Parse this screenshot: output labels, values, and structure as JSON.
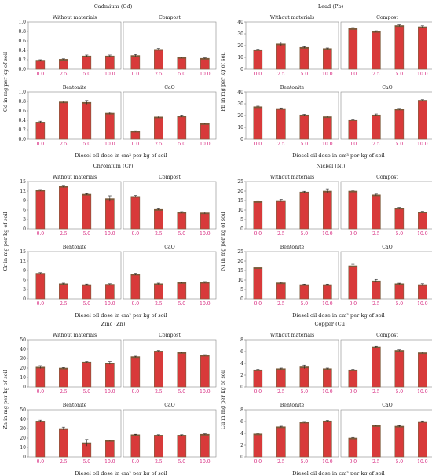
{
  "x_axis_label": "Diesel oil dose in cm³ per kg of soil",
  "doses": [
    "0.0",
    "2.5",
    "5.0",
    "10.0"
  ],
  "colors": {
    "bar": "#d83a3a",
    "bar_edge": "#7a5a3a",
    "xtick": "#d6207b"
  },
  "chart_data": [
    {
      "type": "bar",
      "title": "Cadmium (Cd)",
      "ylabel": "Cd in mg per kg of soil",
      "ylim": [
        0,
        1.0
      ],
      "yticks": [
        "0.0",
        "0.2",
        "0.4",
        "0.6",
        "0.8",
        "1.0"
      ],
      "categories": [
        "0.0",
        "2.5",
        "5.0",
        "10.0"
      ],
      "panels": [
        {
          "name": "Without materials",
          "values": [
            0.19,
            0.21,
            0.28,
            0.28
          ],
          "errors": [
            0.01,
            0.01,
            0.02,
            0.02
          ]
        },
        {
          "name": "Compost",
          "values": [
            0.29,
            0.42,
            0.25,
            0.23
          ],
          "errors": [
            0.02,
            0.02,
            0.01,
            0.01
          ]
        },
        {
          "name": "Bentonite",
          "values": [
            0.36,
            0.79,
            0.78,
            0.55
          ],
          "errors": [
            0.02,
            0.02,
            0.04,
            0.02
          ]
        },
        {
          "name": "CaO",
          "values": [
            0.17,
            0.47,
            0.49,
            0.33
          ],
          "errors": [
            0.01,
            0.02,
            0.02,
            0.01
          ]
        }
      ]
    },
    {
      "type": "bar",
      "title": "Lead (Pb)",
      "ylabel": "Pb in mg per kg of soil",
      "ylim": [
        0,
        40
      ],
      "yticks": [
        "0",
        "10",
        "20",
        "30",
        "40"
      ],
      "categories": [
        "0.0",
        "2.5",
        "5.0",
        "10.0"
      ],
      "panels": [
        {
          "name": "Without materials",
          "values": [
            16.5,
            21.5,
            18.5,
            17.5
          ],
          "errors": [
            0.5,
            1.5,
            0.6,
            0.5
          ]
        },
        {
          "name": "Compost",
          "values": [
            34.5,
            32.0,
            37.0,
            36.0
          ],
          "errors": [
            0.8,
            0.6,
            0.6,
            0.8
          ]
        },
        {
          "name": "Bentonite",
          "values": [
            27.5,
            26.0,
            20.5,
            19.0
          ],
          "errors": [
            0.5,
            0.5,
            0.5,
            0.5
          ]
        },
        {
          "name": "CaO",
          "values": [
            16.5,
            20.5,
            25.5,
            33.0
          ],
          "errors": [
            0.5,
            0.8,
            0.6,
            0.5
          ]
        }
      ]
    },
    {
      "type": "bar",
      "title": "Chromium (Cr)",
      "ylabel": "Cr in mg per kg of soil",
      "ylim": [
        0,
        15
      ],
      "yticks": [
        "0",
        "3",
        "6",
        "9",
        "12",
        "15"
      ],
      "categories": [
        "0.0",
        "2.5",
        "5.0",
        "10.0"
      ],
      "panels": [
        {
          "name": "Without materials",
          "values": [
            12.3,
            13.5,
            11.0,
            9.6
          ],
          "errors": [
            0.2,
            0.3,
            0.2,
            0.9
          ]
        },
        {
          "name": "Compost",
          "values": [
            10.3,
            6.2,
            5.3,
            5.1
          ],
          "errors": [
            0.3,
            0.2,
            0.2,
            0.3
          ]
        },
        {
          "name": "Bentonite",
          "values": [
            8.1,
            4.8,
            4.5,
            4.6
          ],
          "errors": [
            0.2,
            0.2,
            0.2,
            0.2
          ]
        },
        {
          "name": "CaO",
          "values": [
            7.8,
            4.8,
            5.2,
            5.3
          ],
          "errors": [
            0.3,
            0.2,
            0.2,
            0.2
          ]
        }
      ]
    },
    {
      "type": "bar",
      "title": "Nickel (Ni)",
      "ylabel": "Ni in mg per kg of soil",
      "ylim": [
        0,
        25
      ],
      "yticks": [
        "0",
        "5",
        "10",
        "15",
        "20",
        "25"
      ],
      "categories": [
        "0.0",
        "2.5",
        "5.0",
        "10.0"
      ],
      "panels": [
        {
          "name": "Without materials",
          "values": [
            14.5,
            15.0,
            19.5,
            20.0
          ],
          "errors": [
            0.4,
            0.6,
            0.4,
            1.2
          ]
        },
        {
          "name": "Compost",
          "values": [
            20.0,
            18.0,
            11.0,
            9.0
          ],
          "errors": [
            0.4,
            0.4,
            0.4,
            0.3
          ]
        },
        {
          "name": "Bentonite",
          "values": [
            16.5,
            8.5,
            7.5,
            7.5
          ],
          "errors": [
            0.3,
            0.3,
            0.3,
            0.3
          ]
        },
        {
          "name": "CaO",
          "values": [
            17.5,
            9.5,
            8.0,
            7.5
          ],
          "errors": [
            0.8,
            0.8,
            0.3,
            0.5
          ]
        }
      ]
    },
    {
      "type": "bar",
      "title": "Zinc (Zn)",
      "ylabel": "Zn in mg per kg of soil",
      "ylim": [
        0,
        50
      ],
      "yticks": [
        "0",
        "10",
        "20",
        "30",
        "40",
        "50"
      ],
      "categories": [
        "0.0",
        "2.5",
        "5.0",
        "10.0"
      ],
      "panels": [
        {
          "name": "Without materials",
          "values": [
            21.0,
            20.0,
            26.5,
            25.5
          ],
          "errors": [
            1.5,
            0.5,
            0.5,
            1.5
          ]
        },
        {
          "name": "Compost",
          "values": [
            32.0,
            38.0,
            36.5,
            33.5
          ],
          "errors": [
            0.5,
            0.6,
            0.6,
            0.6
          ]
        },
        {
          "name": "Bentonite",
          "values": [
            38.0,
            30.0,
            15.0,
            17.5
          ],
          "errors": [
            1.0,
            1.5,
            3.5,
            0.5
          ]
        },
        {
          "name": "CaO",
          "values": [
            23.5,
            23.0,
            23.0,
            24.0
          ],
          "errors": [
            0.5,
            0.5,
            0.5,
            0.5
          ]
        }
      ]
    },
    {
      "type": "bar",
      "title": "Copper (Cu)",
      "ylabel": "Cu in mg per kg of soil",
      "ylim": [
        0,
        8
      ],
      "yticks": [
        "0",
        "2",
        "4",
        "6",
        "8"
      ],
      "categories": [
        "0.0",
        "2.5",
        "5.0",
        "10.0"
      ],
      "panels": [
        {
          "name": "Without materials",
          "values": [
            2.9,
            3.1,
            3.4,
            3.1
          ],
          "errors": [
            0.1,
            0.1,
            0.3,
            0.1
          ]
        },
        {
          "name": "Compost",
          "values": [
            2.9,
            6.8,
            6.2,
            5.8
          ],
          "errors": [
            0.1,
            0.1,
            0.1,
            0.1
          ]
        },
        {
          "name": "Bentonite",
          "values": [
            3.9,
            5.1,
            5.9,
            6.1
          ],
          "errors": [
            0.1,
            0.1,
            0.1,
            0.1
          ]
        },
        {
          "name": "CaO",
          "values": [
            3.2,
            5.3,
            5.2,
            6.0
          ],
          "errors": [
            0.1,
            0.1,
            0.1,
            0.1
          ]
        }
      ]
    }
  ]
}
